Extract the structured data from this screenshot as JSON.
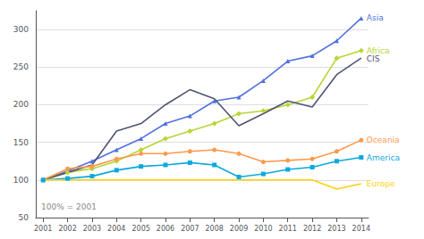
{
  "chart_data": {
    "type": "line",
    "x": [
      2001,
      2002,
      2003,
      2004,
      2005,
      2006,
      2007,
      2008,
      2009,
      2010,
      2011,
      2012,
      2013,
      2014
    ],
    "series": [
      {
        "name": "Asia",
        "marker": "triangle",
        "values": [
          100,
          112,
          125,
          140,
          155,
          175,
          185,
          205,
          210,
          232,
          258,
          265,
          285,
          315
        ]
      },
      {
        "name": "Africa",
        "marker": "diamond",
        "values": [
          100,
          110,
          115,
          125,
          140,
          155,
          165,
          175,
          188,
          192,
          200,
          210,
          262,
          272
        ]
      },
      {
        "name": "CIS",
        "marker": "none",
        "values": [
          100,
          110,
          120,
          165,
          175,
          200,
          220,
          208,
          172,
          188,
          205,
          197,
          240,
          262
        ]
      },
      {
        "name": "Oceania",
        "marker": "circle",
        "values": [
          100,
          115,
          118,
          128,
          135,
          135,
          138,
          140,
          135,
          124,
          126,
          128,
          138,
          153
        ]
      },
      {
        "name": "America",
        "marker": "square",
        "values": [
          100,
          102,
          105,
          113,
          118,
          120,
          123,
          120,
          104,
          108,
          114,
          117,
          125,
          130
        ]
      },
      {
        "name": "Europe",
        "marker": "none",
        "values": [
          100,
          100,
          100,
          100,
          100,
          100,
          100,
          100,
          100,
          100,
          100,
          100,
          88,
          95
        ]
      }
    ],
    "xlim": [
      2000.7,
      2014.3
    ],
    "xticks": [
      2001,
      2002,
      2003,
      2004,
      2005,
      2006,
      2007,
      2008,
      2009,
      2010,
      2011,
      2012,
      2013,
      2014
    ],
    "ylim": [
      50,
      325
    ],
    "yticks": [
      50,
      100,
      150,
      200,
      250,
      300
    ],
    "grid": true,
    "annotation": "100% = 2001"
  }
}
